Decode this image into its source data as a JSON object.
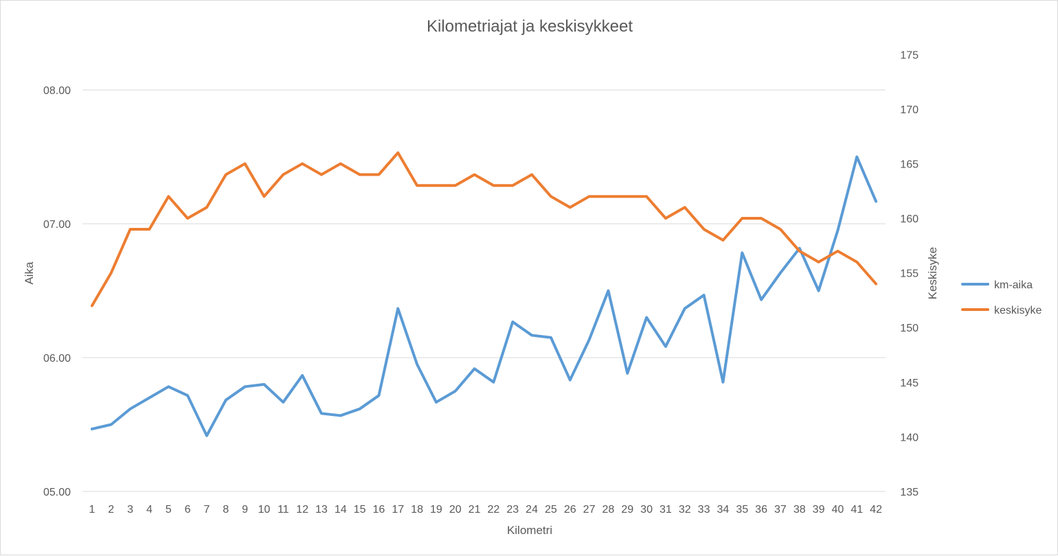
{
  "chart_data": {
    "type": "line",
    "title": "Kilometriajat ja keskisykkeet",
    "xlabel": "Kilometri",
    "ylabel": "Aika",
    "y2label": "Keskisyke",
    "categories": [
      "1",
      "2",
      "3",
      "4",
      "5",
      "6",
      "7",
      "8",
      "9",
      "10",
      "11",
      "12",
      "13",
      "14",
      "15",
      "16",
      "17",
      "18",
      "19",
      "20",
      "21",
      "22",
      "23",
      "24",
      "25",
      "26",
      "27",
      "28",
      "29",
      "30",
      "31",
      "32",
      "33",
      "34",
      "35",
      "36",
      "37",
      "38",
      "39",
      "40",
      "41",
      "42"
    ],
    "y_ticks": [
      "05.00",
      "06.00",
      "07.00",
      "08.00"
    ],
    "y_ticks_minutes": [
      5,
      6,
      7,
      8
    ],
    "ylim_minutes": [
      5,
      8.2564
    ],
    "y2_ticks": [
      "135",
      "140",
      "145",
      "150",
      "155",
      "160",
      "165",
      "170",
      "175"
    ],
    "y2lim": [
      135,
      175
    ],
    "grid": true,
    "legend_position": "right",
    "series": [
      {
        "name": "km-aika",
        "axis": "left",
        "color": "#5b9bd5",
        "values_minutes": [
          5.467,
          5.5,
          5.617,
          5.7,
          5.783,
          5.717,
          5.417,
          5.683,
          5.783,
          5.8,
          5.667,
          5.867,
          5.583,
          5.567,
          5.617,
          5.717,
          6.367,
          5.95,
          5.667,
          5.75,
          5.917,
          5.817,
          6.267,
          6.167,
          6.15,
          5.833,
          6.133,
          6.5,
          5.883,
          6.3,
          6.083,
          6.367,
          6.467,
          5.817,
          6.783,
          6.433,
          6.633,
          6.817,
          6.5,
          6.95,
          7.5,
          7.167
        ]
      },
      {
        "name": "keskisyke",
        "axis": "right",
        "color": "#ed7d31",
        "values": [
          152,
          155,
          159,
          159,
          162,
          160,
          161,
          164,
          165,
          162,
          164,
          165,
          164,
          165,
          164,
          164,
          166,
          163,
          163,
          163,
          164,
          163,
          163,
          164,
          162,
          161,
          162,
          162,
          162,
          162,
          160,
          161,
          159,
          158,
          160,
          160,
          159,
          157,
          156,
          157,
          156,
          154
        ]
      }
    ]
  }
}
